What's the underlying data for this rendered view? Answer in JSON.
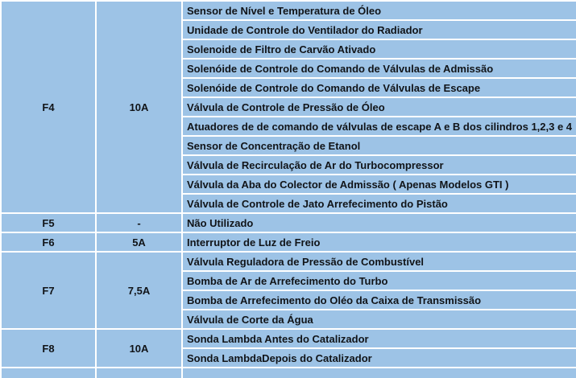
{
  "colors": {
    "cell_background": "#9DC3E6",
    "grid_border": "#FFFFFF",
    "text": "#111418"
  },
  "fuse_table": {
    "groups": [
      {
        "fuse": "F4",
        "amperage": "10A",
        "functions": [
          "Sensor de Nível e Temperatura de Óleo",
          "Unidade de Controle do Ventilador do Radiador",
          "Solenoide de Filtro de Carvão Ativado",
          "Solenóide de Controle do Comando de Válvulas de Admissão",
          "Solenóide de Controle do Comando de Válvulas de Escape",
          "Válvula de Controle de Pressão de Óleo",
          "Atuadores de de comando de válvulas de escape A e B dos cilindros 1,2,3 e 4",
          "Sensor de Concentração de Etanol",
          "Válvula de Recirculação de Ar do Turbocompressor",
          "Válvula da Aba do Colector de Admissão ( Apenas Modelos GTI )",
          "Válvula de Controle de Jato Arrefecimento do Pistão"
        ]
      },
      {
        "fuse": "F5",
        "amperage": "-",
        "functions": [
          "Não Utilizado"
        ]
      },
      {
        "fuse": "F6",
        "amperage": "5A",
        "functions": [
          "Interruptor de Luz de Freio"
        ]
      },
      {
        "fuse": "F7",
        "amperage": "7,5A",
        "functions": [
          "Válvula Reguladora de Pressão de Combustível",
          "Bomba de Ar de Arrefecimento do Turbo",
          "Bomba de Arrefecimento do Oléo da Caixa de Transmissão",
          "Válvula de Corte da Água"
        ]
      },
      {
        "fuse": "F8",
        "amperage": "10A",
        "functions": [
          "Sonda Lambda Antes do Catalizador",
          "Sonda LambdaDepois do Catalizador"
        ]
      }
    ]
  }
}
